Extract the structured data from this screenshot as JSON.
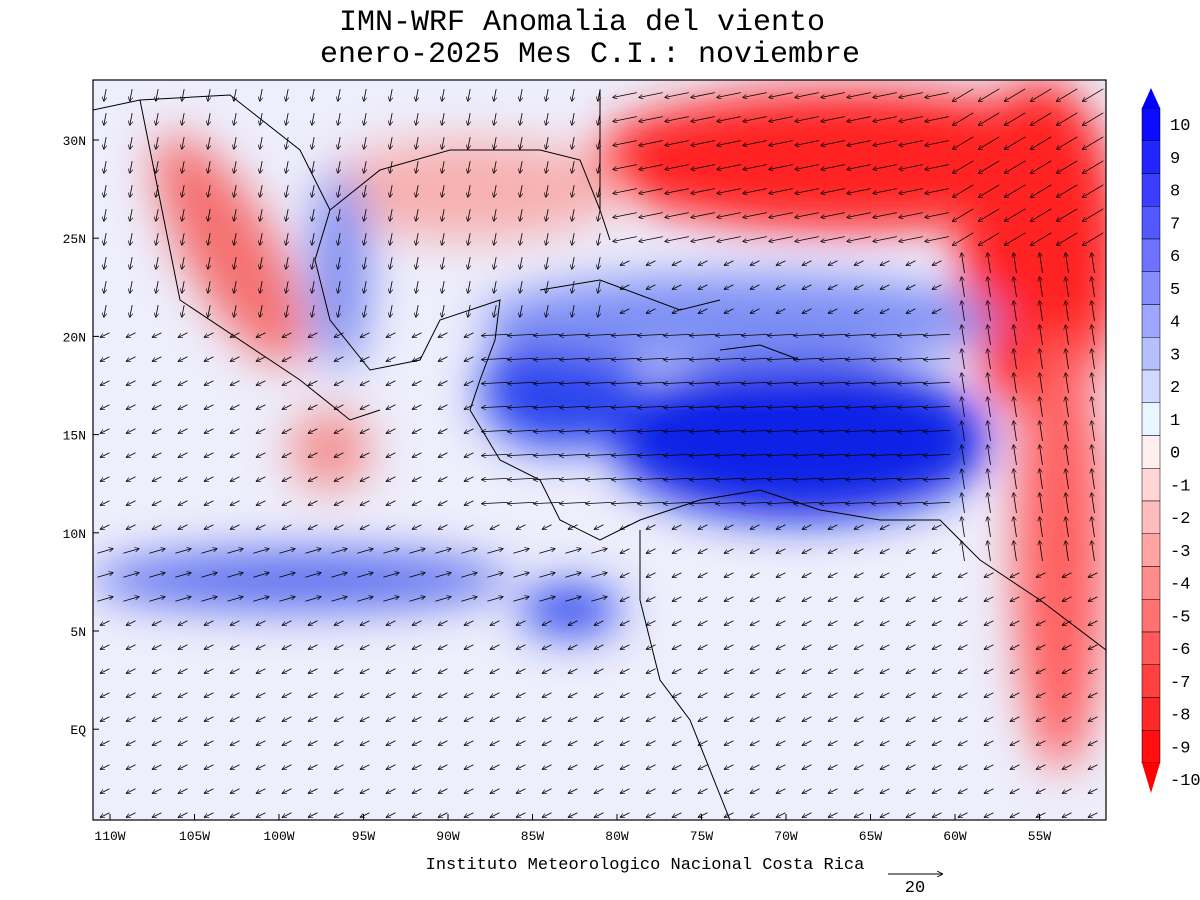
{
  "title": [
    "IMN-WRF Anomalia del viento",
    "enero-2025 Mes C.I.: noviembre"
  ],
  "latitude_labels": [
    "30N",
    "25N",
    "20N",
    "15N",
    "10N",
    "5N",
    "EQ"
  ],
  "longitude_labels": [
    "110W",
    "105W",
    "100W",
    "95W",
    "90W",
    "85W",
    "80W",
    "75W",
    "70W",
    "65W",
    "60W",
    "55W"
  ],
  "colorbar": {
    "levels": [
      10,
      9,
      8,
      7,
      6,
      5,
      4,
      3,
      2,
      1,
      0,
      -1,
      -2,
      -3,
      -4,
      -5,
      -6,
      -7,
      -8,
      -9,
      -10
    ]
  },
  "footer": "Instituto Meteorologico Nacional Costa Rica",
  "vector_scale": "20"
}
